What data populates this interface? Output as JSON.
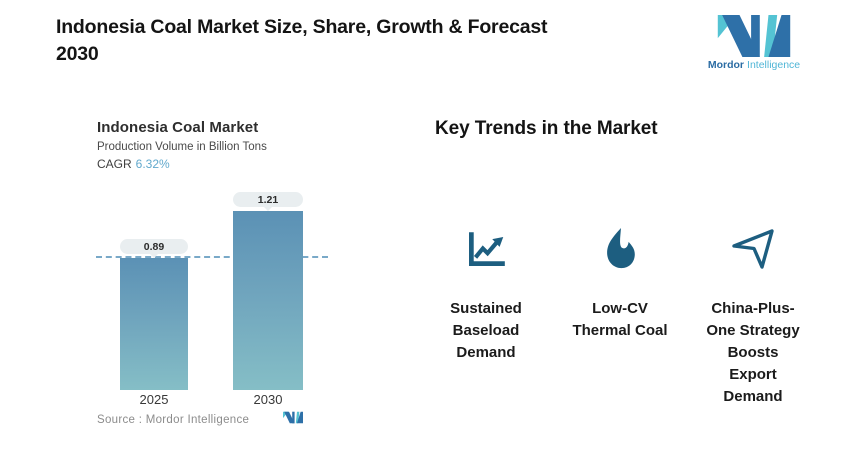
{
  "header": {
    "title": "Indonesia Coal Market Size, Share, Growth & Forecast\n2030",
    "brand": {
      "bold": "Mordor",
      "light": "Intelligence"
    }
  },
  "chart": {
    "title": "Indonesia Coal Market",
    "subtitle": "Production Volume in Billion Tons",
    "cagr_label": "CAGR",
    "cagr_value": "6.32%",
    "source_label": "Source :  Mordor Intelligence",
    "bars": [
      {
        "year": "2025",
        "value": "0.89"
      },
      {
        "year": "2030",
        "value": "1.21"
      }
    ]
  },
  "chart_data": {
    "type": "bar",
    "categories": [
      "2025",
      "2030"
    ],
    "values": [
      0.89,
      1.21
    ],
    "title": "Indonesia Coal Market",
    "subtitle": "Production Volume in Billion Tons",
    "cagr": "6.32%",
    "xlabel": "",
    "ylabel": "Production Volume in Billion Tons",
    "ylim": [
      0,
      1.35
    ],
    "data_labels": [
      "0.89",
      "1.21"
    ],
    "reference_line": 0.89,
    "grid": false,
    "legend": false,
    "source": "Mordor Intelligence"
  },
  "trends": {
    "heading": "Key Trends in the Market",
    "items": [
      {
        "icon": "line-chart-icon",
        "label": "Sustained\nBaseload\nDemand"
      },
      {
        "icon": "flame-icon",
        "label": "Low-CV\nThermal Coal"
      },
      {
        "icon": "paper-plane-icon",
        "label": "China-Plus-\nOne Strategy\nBoosts\nExport\nDemand"
      }
    ]
  },
  "colors": {
    "brand_blue": "#2E70A8",
    "brand_teal": "#54C3D3",
    "bar_gradient_top": "#5B91B5",
    "bar_gradient_bottom": "#85BEC6",
    "cagr_blue": "#62A9CD",
    "dashed_line": "#79A9C8",
    "pill_background": "#E9EEF0",
    "icon_blue": "#1D5E80",
    "title_text": "#141414",
    "source_gray": "#8C8C8C"
  }
}
